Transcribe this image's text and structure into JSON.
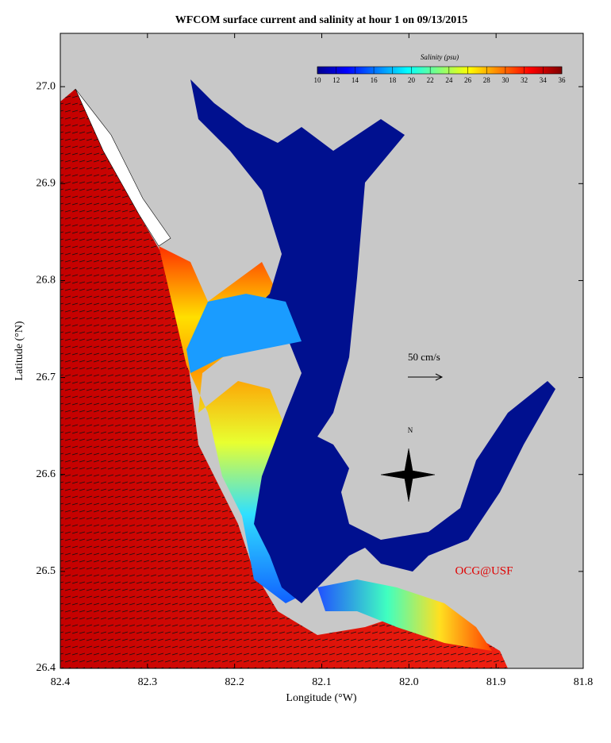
{
  "title": "WFCOM surface current and salinity at hour 1 on 09/13/2015",
  "x_axis": {
    "label": "Longitude (°W)",
    "lim": [
      82.4,
      81.8
    ],
    "ticks": [
      82.4,
      82.3,
      82.2,
      82.1,
      {
        "value": 82,
        "label": "82.0"
      },
      81.9,
      81.8
    ]
  },
  "y_axis": {
    "label": "Latitude (°N)",
    "lim": [
      26.4,
      27.055
    ],
    "ticks": [
      26.4,
      26.5,
      26.6,
      26.7,
      26.8,
      26.9,
      {
        "value": 27,
        "label": "27.0"
      }
    ]
  },
  "colorbar": {
    "label": "Salinity (psu)",
    "lim": [
      10,
      36
    ],
    "ticks": [
      10,
      12,
      14,
      16,
      18,
      20,
      22,
      24,
      26,
      28,
      30,
      32,
      34,
      36
    ]
  },
  "scale_vector": "50 cm/s",
  "compass": "N",
  "credit": "OCG@USF"
}
